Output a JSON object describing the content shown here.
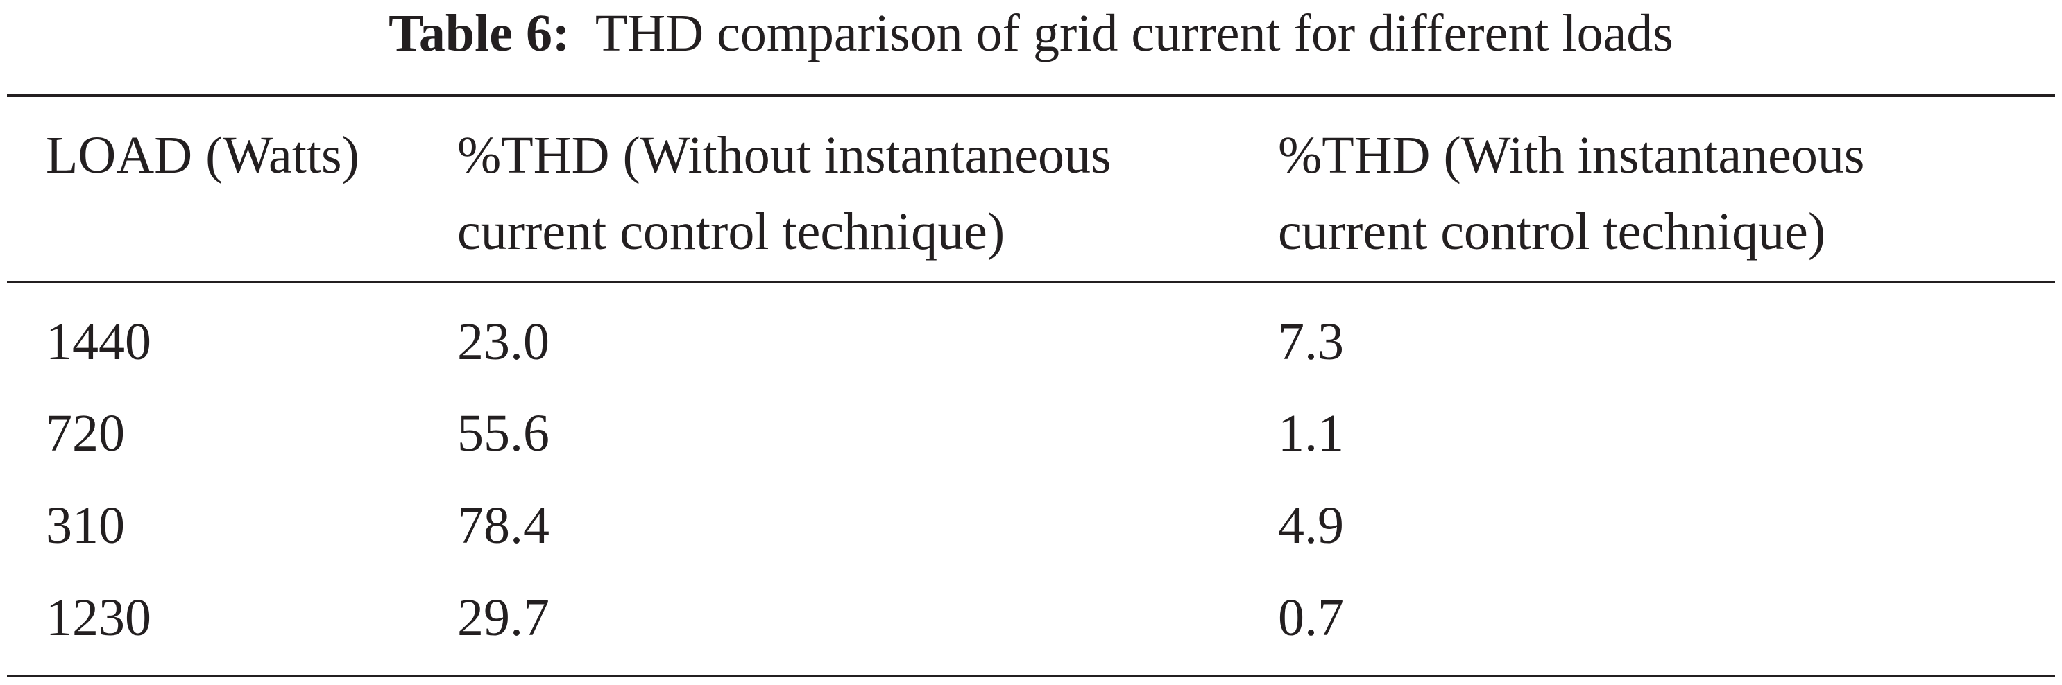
{
  "caption": {
    "label": "Table 6:",
    "text": "THD comparison of grid current for different loads"
  },
  "table": {
    "header": [
      [
        "LOAD (Watts)"
      ],
      [
        "%THD (Without instantaneous",
        "current control technique)"
      ],
      [
        "%THD (With instantaneous",
        "current control technique)"
      ]
    ],
    "rows": [
      [
        "1440",
        "23.0",
        "7.3"
      ],
      [
        "720",
        "55.6",
        "1.1"
      ],
      [
        "310",
        "78.4",
        "4.9"
      ],
      [
        "1230",
        "29.7",
        "0.7"
      ]
    ]
  }
}
